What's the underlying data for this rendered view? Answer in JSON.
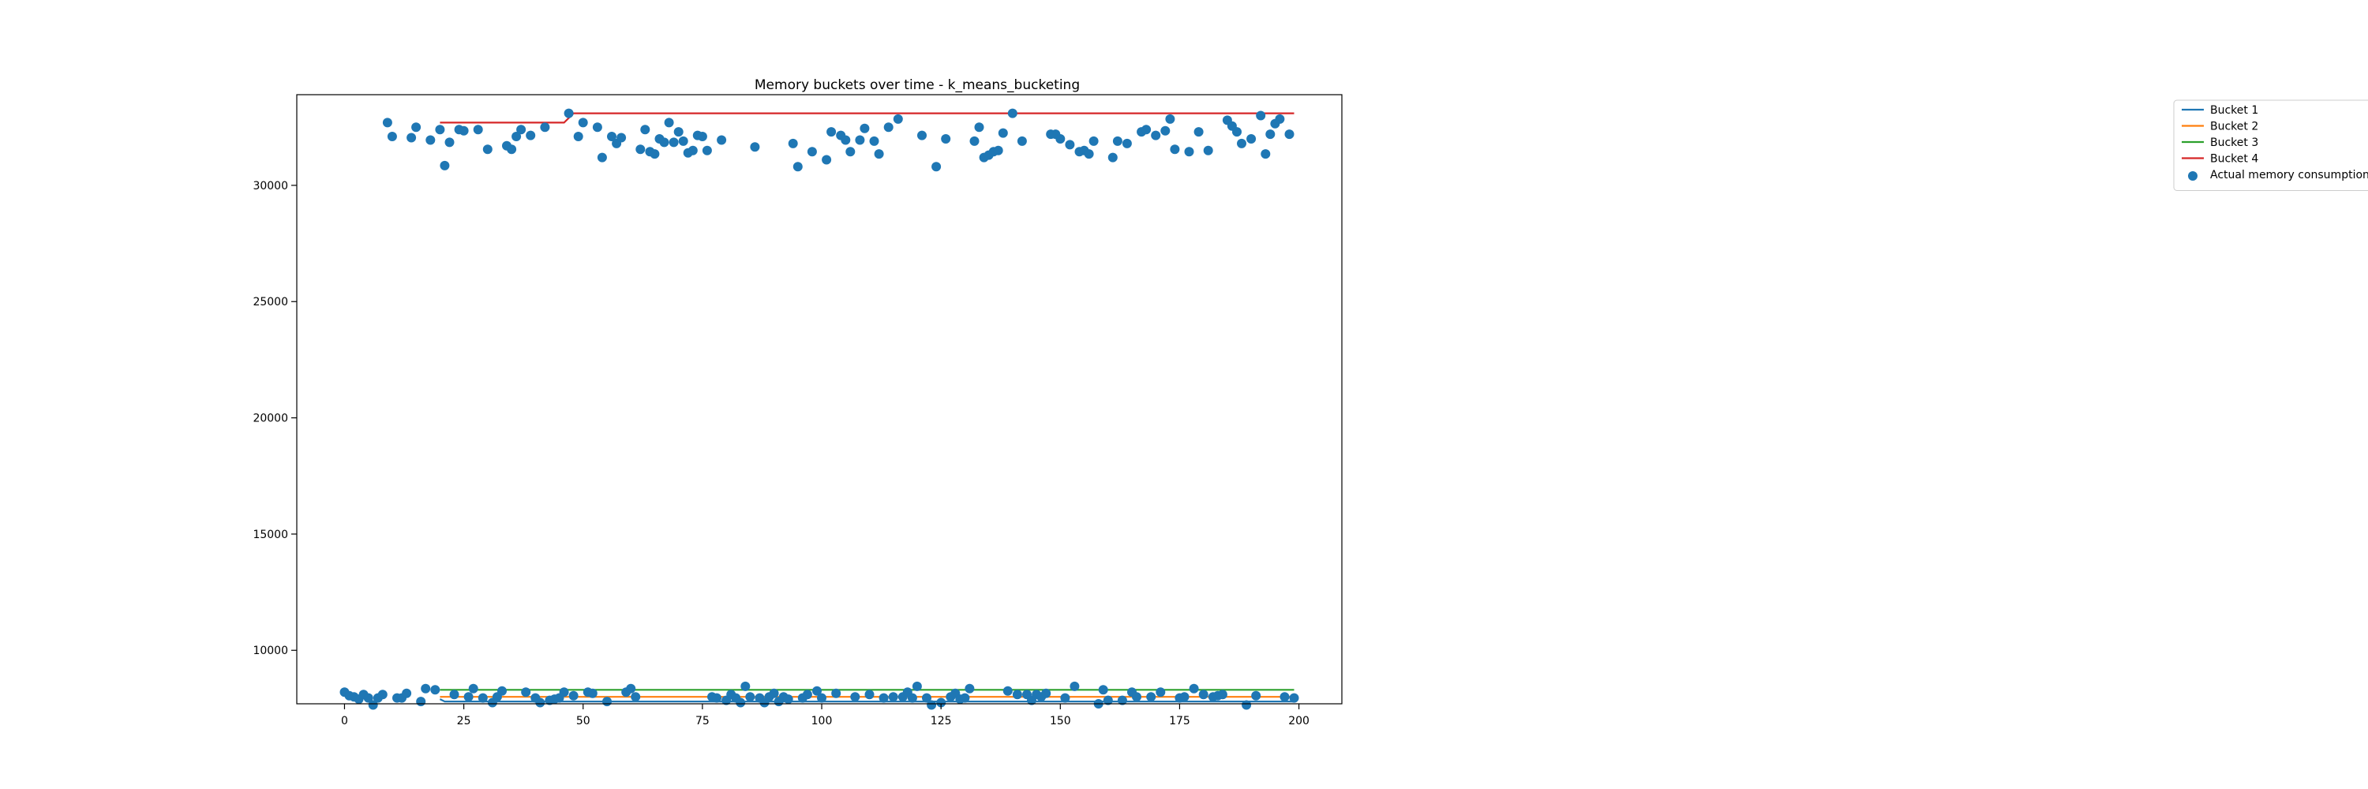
{
  "chart_data": {
    "type": "scatter",
    "title": "Memory buckets over time - k_means_bucketing",
    "xlabel": "",
    "ylabel": "",
    "xlim": [
      -10,
      209
    ],
    "ylim": [
      7700,
      33900
    ],
    "x_ticks": [
      0,
      25,
      50,
      75,
      100,
      125,
      150,
      175,
      200
    ],
    "y_ticks": [
      10000,
      15000,
      20000,
      25000,
      30000
    ],
    "grid": false,
    "legend_position": "outside-top-right",
    "lines": [
      {
        "name": "Bucket 1",
        "color": "#1f77b4",
        "x": [
          20,
          21,
          199
        ],
        "y": [
          7900,
          7800,
          7800
        ]
      },
      {
        "name": "Bucket 2",
        "color": "#ff7f0e",
        "x": [
          20,
          199
        ],
        "y": [
          8000,
          8000
        ]
      },
      {
        "name": "Bucket 3",
        "color": "#2ca02c",
        "x": [
          20,
          199
        ],
        "y": [
          8300,
          8300
        ]
      },
      {
        "name": "Bucket 4",
        "color": "#d62728",
        "x": [
          20,
          46,
          48,
          199
        ],
        "y": [
          32700,
          32700,
          33100,
          33100
        ]
      }
    ],
    "scatter": {
      "name": "Actual memory consumption",
      "color": "#1f77b4",
      "points": [
        [
          0,
          8200
        ],
        [
          1,
          8050
        ],
        [
          2,
          8000
        ],
        [
          3,
          7900
        ],
        [
          4,
          8100
        ],
        [
          5,
          7950
        ],
        [
          6,
          7650
        ],
        [
          7,
          7950
        ],
        [
          8,
          8100
        ],
        [
          9,
          32700
        ],
        [
          10,
          32100
        ],
        [
          11,
          7950
        ],
        [
          12,
          7950
        ],
        [
          13,
          8150
        ],
        [
          14,
          32050
        ],
        [
          15,
          32500
        ],
        [
          16,
          7800
        ],
        [
          17,
          8350
        ],
        [
          18,
          31950
        ],
        [
          19,
          8300
        ],
        [
          20,
          32400
        ],
        [
          21,
          30850
        ],
        [
          22,
          31850
        ],
        [
          23,
          8100
        ],
        [
          24,
          32400
        ],
        [
          25,
          32350
        ],
        [
          26,
          8000
        ],
        [
          27,
          8350
        ],
        [
          28,
          32400
        ],
        [
          29,
          7950
        ],
        [
          30,
          31550
        ],
        [
          31,
          7750
        ],
        [
          32,
          8000
        ],
        [
          33,
          8250
        ],
        [
          34,
          31700
        ],
        [
          35,
          31550
        ],
        [
          36,
          32100
        ],
        [
          37,
          32400
        ],
        [
          38,
          8200
        ],
        [
          39,
          32150
        ],
        [
          40,
          7950
        ],
        [
          41,
          7750
        ],
        [
          42,
          32500
        ],
        [
          43,
          7850
        ],
        [
          44,
          7900
        ],
        [
          45,
          7950
        ],
        [
          46,
          8200
        ],
        [
          47,
          33100
        ],
        [
          48,
          8050
        ],
        [
          49,
          32100
        ],
        [
          50,
          32700
        ],
        [
          51,
          8200
        ],
        [
          52,
          8150
        ],
        [
          53,
          32500
        ],
        [
          54,
          31200
        ],
        [
          55,
          7800
        ],
        [
          56,
          32100
        ],
        [
          57,
          31800
        ],
        [
          58,
          32050
        ],
        [
          59,
          8200
        ],
        [
          60,
          8350
        ],
        [
          61,
          8000
        ],
        [
          62,
          31550
        ],
        [
          63,
          32400
        ],
        [
          64,
          31450
        ],
        [
          65,
          31350
        ],
        [
          66,
          32000
        ],
        [
          67,
          31850
        ],
        [
          68,
          32700
        ],
        [
          69,
          31850
        ],
        [
          70,
          32300
        ],
        [
          71,
          31900
        ],
        [
          72,
          31400
        ],
        [
          73,
          31500
        ],
        [
          74,
          32150
        ],
        [
          75,
          32100
        ],
        [
          76,
          31500
        ],
        [
          77,
          8000
        ],
        [
          78,
          7950
        ],
        [
          79,
          31950
        ],
        [
          80,
          7850
        ],
        [
          81,
          8100
        ],
        [
          82,
          7950
        ],
        [
          83,
          7750
        ],
        [
          84,
          8450
        ],
        [
          85,
          8000
        ],
        [
          86,
          31650
        ],
        [
          87,
          7950
        ],
        [
          88,
          7750
        ],
        [
          89,
          8000
        ],
        [
          90,
          8150
        ],
        [
          91,
          7800
        ],
        [
          92,
          8000
        ],
        [
          93,
          7900
        ],
        [
          94,
          31800
        ],
        [
          95,
          30800
        ],
        [
          96,
          7950
        ],
        [
          97,
          8100
        ],
        [
          98,
          31450
        ],
        [
          99,
          8250
        ],
        [
          100,
          7950
        ],
        [
          101,
          31100
        ],
        [
          102,
          32300
        ],
        [
          103,
          8150
        ],
        [
          104,
          32150
        ],
        [
          105,
          31950
        ],
        [
          106,
          31450
        ],
        [
          107,
          8000
        ],
        [
          108,
          31950
        ],
        [
          109,
          32450
        ],
        [
          110,
          8100
        ],
        [
          111,
          31900
        ],
        [
          112,
          31350
        ],
        [
          113,
          7950
        ],
        [
          114,
          32500
        ],
        [
          115,
          8000
        ],
        [
          116,
          32850
        ],
        [
          117,
          8000
        ],
        [
          118,
          8200
        ],
        [
          119,
          7950
        ],
        [
          120,
          8450
        ],
        [
          121,
          32150
        ],
        [
          122,
          7950
        ],
        [
          123,
          7650
        ],
        [
          124,
          30800
        ],
        [
          125,
          7750
        ],
        [
          126,
          32000
        ],
        [
          127,
          8000
        ],
        [
          128,
          8150
        ],
        [
          129,
          7900
        ],
        [
          130,
          7950
        ],
        [
          131,
          8350
        ],
        [
          132,
          31900
        ],
        [
          133,
          32500
        ],
        [
          134,
          31200
        ],
        [
          135,
          31300
        ],
        [
          136,
          31450
        ],
        [
          137,
          31500
        ],
        [
          138,
          32250
        ],
        [
          139,
          8250
        ],
        [
          140,
          33100
        ],
        [
          141,
          8100
        ],
        [
          142,
          31900
        ],
        [
          143,
          8100
        ],
        [
          144,
          7850
        ],
        [
          145,
          8100
        ],
        [
          146,
          8000
        ],
        [
          147,
          8150
        ],
        [
          148,
          32200
        ],
        [
          149,
          32200
        ],
        [
          150,
          32000
        ],
        [
          151,
          7950
        ],
        [
          152,
          31750
        ],
        [
          153,
          8450
        ],
        [
          154,
          31450
        ],
        [
          155,
          31500
        ],
        [
          156,
          31350
        ],
        [
          157,
          31900
        ],
        [
          158,
          7700
        ],
        [
          159,
          8300
        ],
        [
          160,
          7850
        ],
        [
          161,
          31200
        ],
        [
          162,
          31900
        ],
        [
          163,
          7850
        ],
        [
          164,
          31800
        ],
        [
          165,
          8200
        ],
        [
          166,
          8000
        ],
        [
          167,
          32300
        ],
        [
          168,
          32400
        ],
        [
          169,
          8000
        ],
        [
          170,
          32150
        ],
        [
          171,
          8200
        ],
        [
          172,
          32350
        ],
        [
          173,
          32850
        ],
        [
          174,
          31550
        ],
        [
          175,
          7950
        ],
        [
          176,
          8000
        ],
        [
          177,
          31450
        ],
        [
          178,
          8350
        ],
        [
          179,
          32300
        ],
        [
          180,
          8100
        ],
        [
          181,
          31500
        ],
        [
          182,
          8000
        ],
        [
          183,
          8050
        ],
        [
          184,
          8100
        ],
        [
          185,
          32800
        ],
        [
          186,
          32550
        ],
        [
          187,
          32300
        ],
        [
          188,
          31800
        ],
        [
          189,
          7650
        ],
        [
          190,
          32000
        ],
        [
          191,
          8050
        ],
        [
          192,
          33000
        ],
        [
          193,
          31350
        ],
        [
          194,
          32200
        ],
        [
          195,
          32650
        ],
        [
          196,
          32850
        ],
        [
          197,
          8000
        ],
        [
          198,
          32200
        ],
        [
          199,
          7950
        ]
      ]
    }
  }
}
